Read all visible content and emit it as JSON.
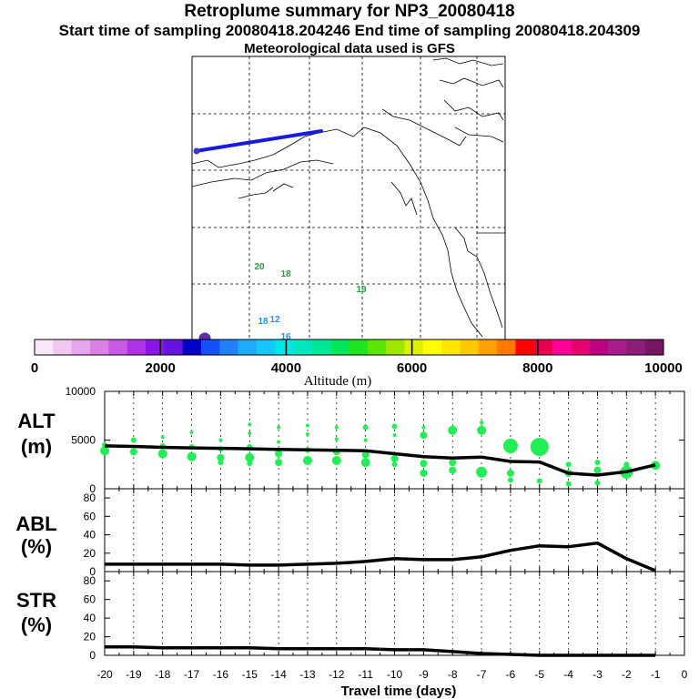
{
  "header": {
    "title": "Retroplume summary for NP3_20080418",
    "sampling": "Start time of sampling 20080418.204246     End time of sampling 20080418.204309",
    "met": "Meteorological data used is GFS"
  },
  "map": {
    "point_labels": [
      "20",
      "18",
      "19",
      "18",
      "12",
      "16"
    ],
    "point_label_colors": [
      "#1f9f3a",
      "#1f9f3a",
      "#1f9f3a",
      "#1e90ff",
      "#1e90ff",
      "#1e90ff"
    ],
    "track_color": "#1a1adc",
    "start_marker_color": "#3d3dc4",
    "end_marker_color": "#6a2aa0"
  },
  "colorbar": {
    "colors": [
      "#f9e6f9",
      "#f0c8f0",
      "#e6a5ec",
      "#db80e6",
      "#c85ae6",
      "#b032e6",
      "#8c14e6",
      "#6414dc",
      "#0000c8",
      "#1450ff",
      "#1e82ff",
      "#1eaaff",
      "#14c8ff",
      "#00e6e6",
      "#00e6be",
      "#00e696",
      "#00e65a",
      "#1ee61e",
      "#5ae600",
      "#a0e600",
      "#dcf000",
      "#ffff00",
      "#ffe600",
      "#ffc800",
      "#ffa000",
      "#ff7800",
      "#ff0000",
      "#e60050",
      "#ff0096",
      "#e6006e",
      "#be0082",
      "#aa1e8c",
      "#8c1e78",
      "#781464"
    ],
    "tick_labels": [
      "0",
      "2000",
      "4000",
      "6000",
      "8000",
      "10000"
    ],
    "label": "Altitude (m)"
  },
  "panels": {
    "alt": {
      "label1": "ALT",
      "label2": "(m)",
      "y_ticks": [
        "10000",
        "5000",
        "0"
      ]
    },
    "abl": {
      "label1": "ABL",
      "label2": "(%)",
      "y_ticks": [
        "80",
        "60",
        "40",
        "20",
        "0"
      ]
    },
    "str": {
      "label1": "STR",
      "label2": "(%)",
      "y_ticks": [
        "80",
        "60",
        "40",
        "20",
        "0"
      ]
    }
  },
  "x_axis": {
    "tick_labels": [
      "-20",
      "-19",
      "-18",
      "-17",
      "-16",
      "-15",
      "-14",
      "-13",
      "-12",
      "-11",
      "-10",
      "-9",
      "-8",
      "-7",
      "-6",
      "-5",
      "-4",
      "-3",
      "-2",
      "-1",
      "0"
    ],
    "label": "Travel time (days)"
  },
  "chart_data": {
    "type": "line",
    "title": "Retroplume summary for NP3_20080418",
    "x": [
      -20,
      -19,
      -18,
      -17,
      -16,
      -15,
      -14,
      -13,
      -12,
      -11,
      -10,
      -9,
      -8,
      -7,
      -6,
      -5,
      -4,
      -3,
      -2,
      -1
    ],
    "xlabel": "Travel time (days)",
    "xlim": [
      -20,
      0
    ],
    "series": [
      {
        "name": "ALT",
        "ylabel": "ALT (m)",
        "ylim": [
          0,
          10000
        ],
        "values": [
          4400,
          4350,
          4250,
          4200,
          4150,
          4100,
          4050,
          4000,
          3950,
          3900,
          3600,
          3300,
          3150,
          3250,
          2800,
          2750,
          1600,
          1400,
          1750,
          2450
        ]
      },
      {
        "name": "ABL",
        "ylabel": "ABL (%)",
        "ylim": [
          0,
          90
        ],
        "values": [
          8,
          8,
          8,
          8,
          8,
          7,
          7,
          8,
          9,
          11,
          14,
          13,
          13,
          16,
          23,
          28,
          27,
          31,
          14,
          1
        ]
      },
      {
        "name": "STR",
        "ylabel": "STR (%)",
        "ylim": [
          0,
          90
        ],
        "values": [
          9,
          9,
          8,
          8,
          8,
          8,
          7,
          7,
          7,
          7,
          6,
          6,
          4,
          2,
          1,
          0,
          0,
          0,
          0,
          0
        ]
      }
    ],
    "alt_dots": {
      "color": "#22ee55",
      "points": [
        [
          -20,
          4500,
          3
        ],
        [
          -20,
          3900,
          5
        ],
        [
          -19,
          5000,
          3
        ],
        [
          -19,
          3800,
          4
        ],
        [
          -18,
          5300,
          2
        ],
        [
          -18,
          4400,
          3
        ],
        [
          -18,
          3600,
          5
        ],
        [
          -17,
          5800,
          2
        ],
        [
          -17,
          4300,
          3
        ],
        [
          -17,
          3300,
          5
        ],
        [
          -16,
          5000,
          2
        ],
        [
          -16,
          4100,
          3
        ],
        [
          -16,
          3200,
          4
        ],
        [
          -16,
          2700,
          3
        ],
        [
          -15,
          6600,
          2
        ],
        [
          -15,
          5700,
          2
        ],
        [
          -15,
          4300,
          3
        ],
        [
          -15,
          3200,
          5
        ],
        [
          -15,
          2600,
          3
        ],
        [
          -14,
          6300,
          2
        ],
        [
          -14,
          4800,
          2
        ],
        [
          -14,
          3600,
          4
        ],
        [
          -14,
          2700,
          4
        ],
        [
          -13,
          6500,
          2
        ],
        [
          -13,
          5600,
          2
        ],
        [
          -13,
          4000,
          3
        ],
        [
          -13,
          2900,
          5
        ],
        [
          -12,
          6300,
          2
        ],
        [
          -12,
          5100,
          2
        ],
        [
          -12,
          3800,
          4
        ],
        [
          -12,
          2900,
          5
        ],
        [
          -11,
          6300,
          3
        ],
        [
          -11,
          5000,
          2
        ],
        [
          -11,
          3500,
          4
        ],
        [
          -11,
          2700,
          5
        ],
        [
          -10,
          6400,
          3
        ],
        [
          -10,
          5500,
          2
        ],
        [
          -10,
          3100,
          4
        ],
        [
          -10,
          2500,
          3
        ],
        [
          -9,
          6300,
          2
        ],
        [
          -9,
          5500,
          4
        ],
        [
          -9,
          2600,
          4
        ],
        [
          -9,
          1600,
          4
        ],
        [
          -8,
          6000,
          5
        ],
        [
          -8,
          2700,
          4
        ],
        [
          -8,
          1900,
          4
        ],
        [
          -7,
          6800,
          2
        ],
        [
          -7,
          6000,
          5
        ],
        [
          -7,
          1700,
          6
        ],
        [
          -6,
          4400,
          8
        ],
        [
          -6,
          1600,
          4
        ],
        [
          -6,
          900,
          3
        ],
        [
          -5,
          4300,
          10
        ],
        [
          -5,
          800,
          3
        ],
        [
          -4,
          2500,
          3
        ],
        [
          -4,
          1600,
          4
        ],
        [
          -4,
          500,
          3
        ],
        [
          -3,
          2700,
          3
        ],
        [
          -3,
          1900,
          4
        ],
        [
          -3,
          600,
          3
        ],
        [
          -2,
          2500,
          3
        ],
        [
          -2,
          1700,
          7
        ],
        [
          -2,
          1500,
          5
        ],
        [
          -1,
          2400,
          5
        ]
      ]
    }
  }
}
